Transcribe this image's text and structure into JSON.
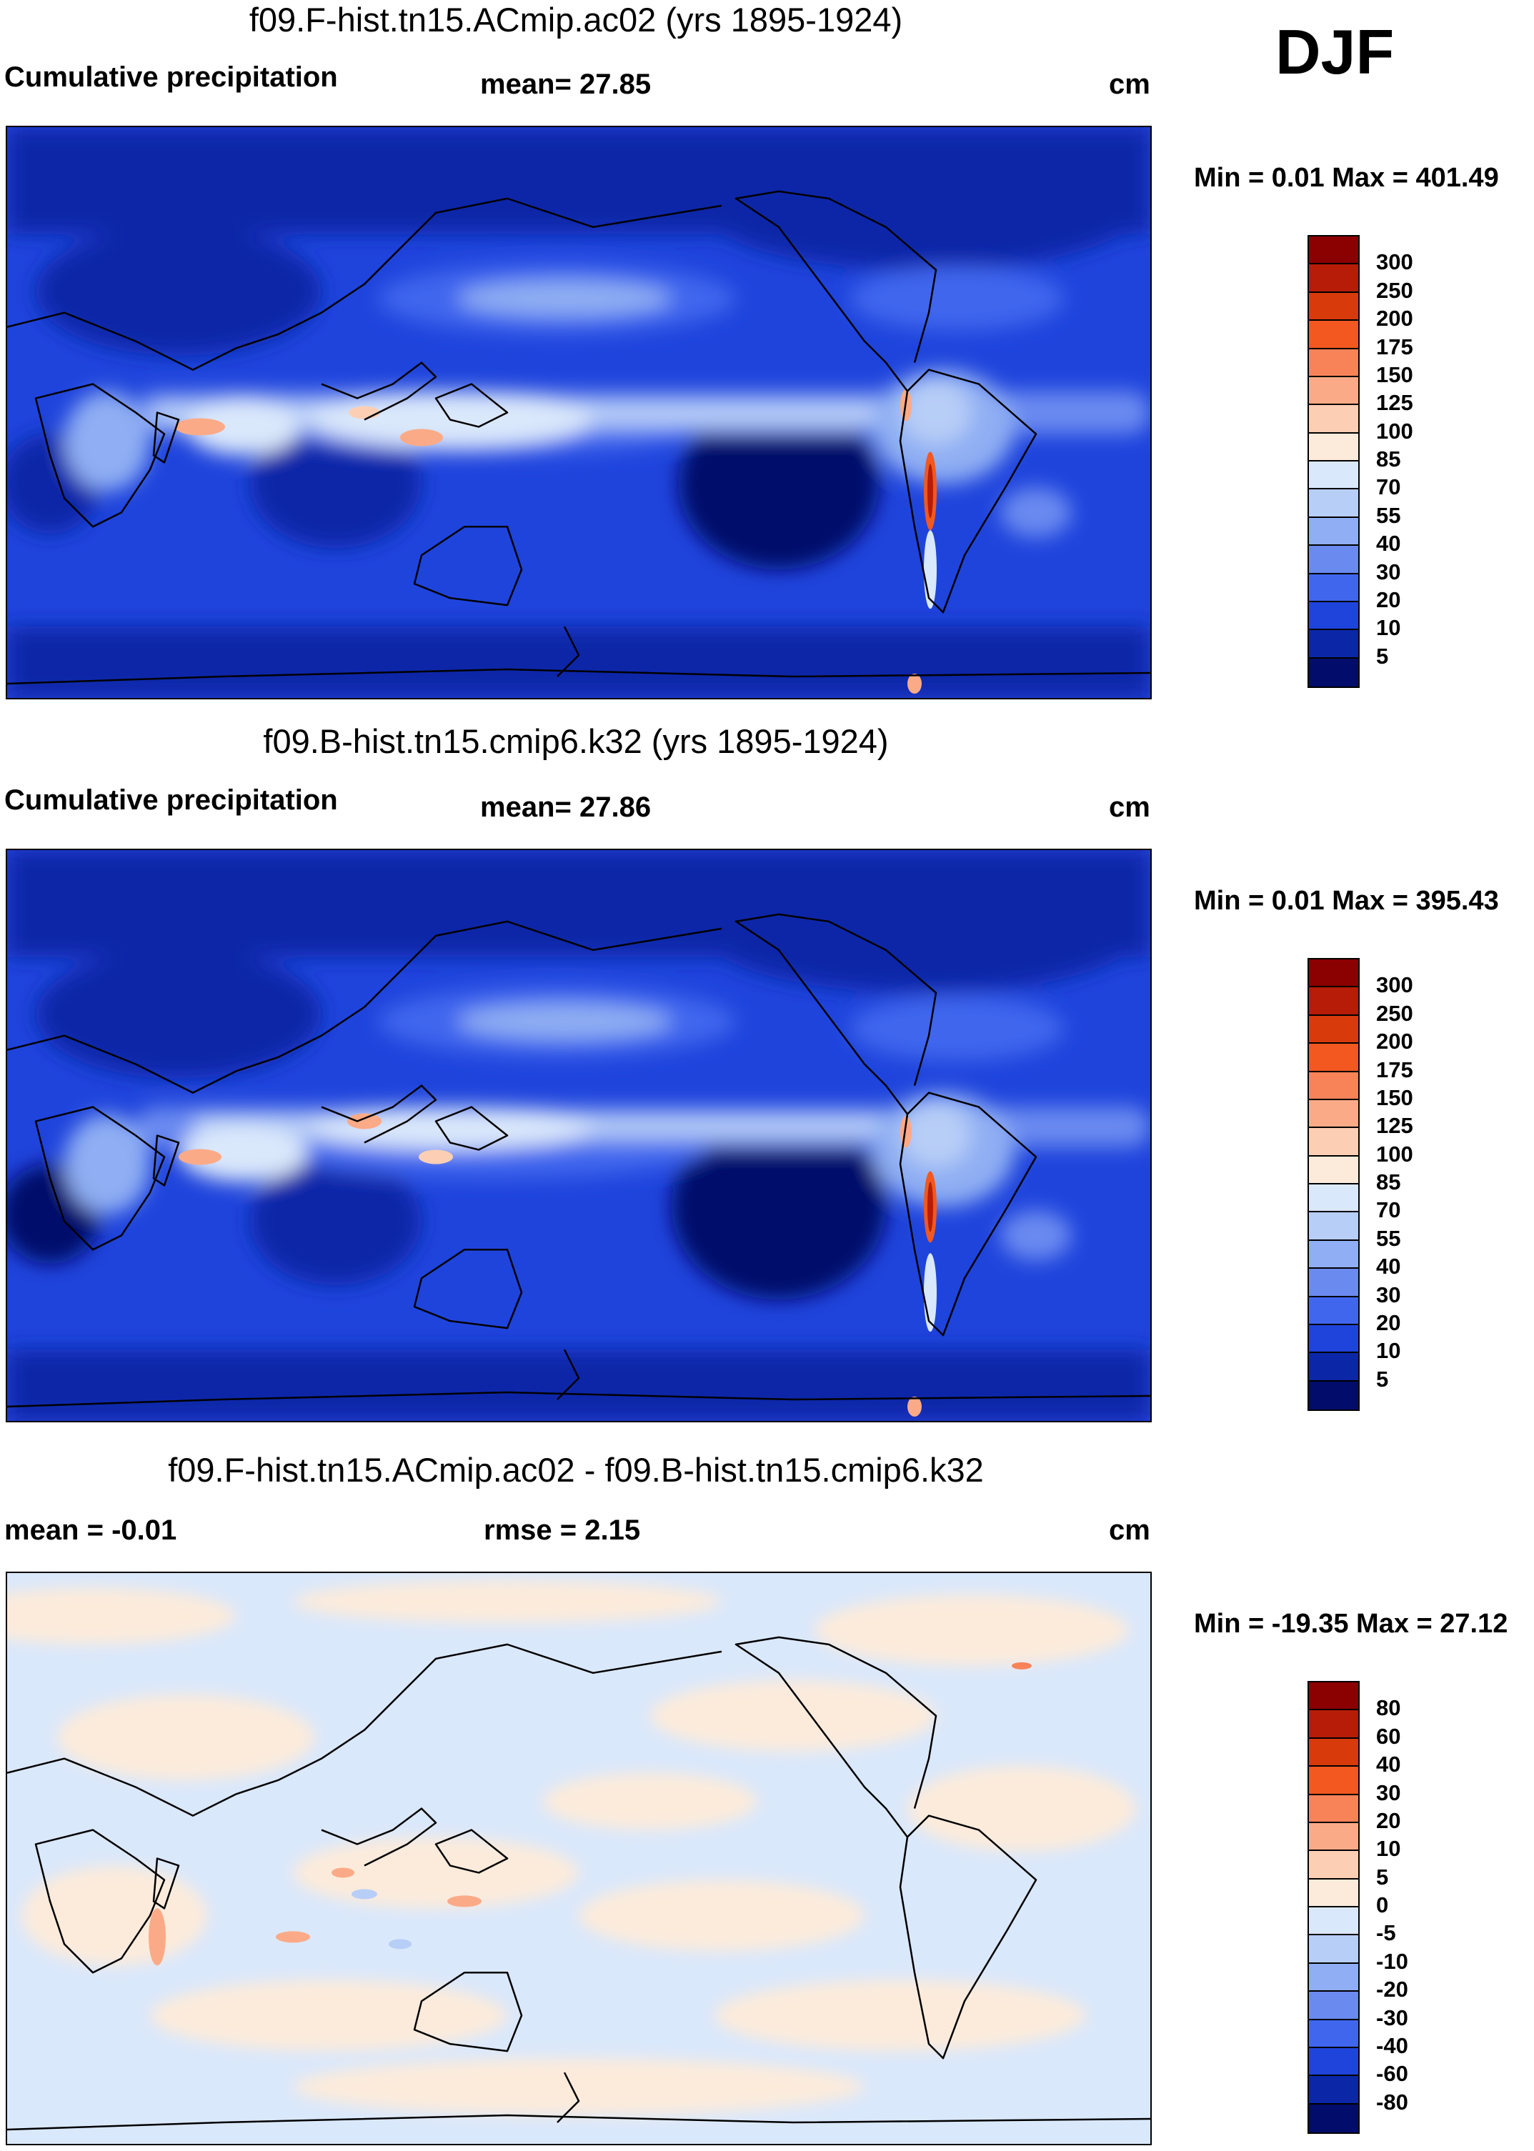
{
  "season": "DJF",
  "panels": [
    {
      "title": "f09.F-hist.tn15.ACmip.ac02 (yrs 1895-1924)",
      "left_label": "Cumulative precipitation",
      "center_label": "mean=  27.85",
      "units": "cm",
      "minmax": "Min =   0.01 Max = 401.49",
      "colorbar": {
        "colors": [
          "#8b0000",
          "#b61c08",
          "#d83a0c",
          "#f2581f",
          "#f88358",
          "#fbaa87",
          "#fccfb4",
          "#fcebdb",
          "#dae8fb",
          "#b7cef7",
          "#8faef3",
          "#6b8af0",
          "#4166ee",
          "#1f44dc",
          "#0b27a8",
          "#020c6a"
        ],
        "labels": [
          "300",
          "250",
          "200",
          "175",
          "150",
          "125",
          "100",
          "85",
          "70",
          "55",
          "40",
          "30",
          "20",
          "10",
          "5"
        ]
      }
    },
    {
      "title": "f09.B-hist.tn15.cmip6.k32 (yrs 1895-1924)",
      "left_label": "Cumulative precipitation",
      "center_label": "mean=  27.86",
      "units": "cm",
      "minmax": "Min =   0.01 Max = 395.43",
      "colorbar": {
        "colors": [
          "#8b0000",
          "#b61c08",
          "#d83a0c",
          "#f2581f",
          "#f88358",
          "#fbaa87",
          "#fccfb4",
          "#fcebdb",
          "#dae8fb",
          "#b7cef7",
          "#8faef3",
          "#6b8af0",
          "#4166ee",
          "#1f44dc",
          "#0b27a8",
          "#020c6a"
        ],
        "labels": [
          "300",
          "250",
          "200",
          "175",
          "150",
          "125",
          "100",
          "85",
          "70",
          "55",
          "40",
          "30",
          "20",
          "10",
          "5"
        ]
      }
    },
    {
      "title": "f09.F-hist.tn15.ACmip.ac02 - f09.B-hist.tn15.cmip6.k32",
      "left_label": "mean =  -0.01",
      "center_label": "rmse =   2.15",
      "units": "cm",
      "minmax": "Min = -19.35 Max =  27.12",
      "colorbar": {
        "colors": [
          "#8b0000",
          "#b61c08",
          "#d83a0c",
          "#f2581f",
          "#f88358",
          "#fbaa87",
          "#fccfb4",
          "#fcebdb",
          "#dae8fb",
          "#b7cef7",
          "#8faef3",
          "#6b8af0",
          "#4166ee",
          "#1f44dc",
          "#0b27a8",
          "#020c6a"
        ],
        "labels": [
          "80",
          "60",
          "40",
          "30",
          "20",
          "10",
          "5",
          "0",
          "-5",
          "-10",
          "-20",
          "-30",
          "-40",
          "-60",
          "-80"
        ]
      }
    }
  ]
}
